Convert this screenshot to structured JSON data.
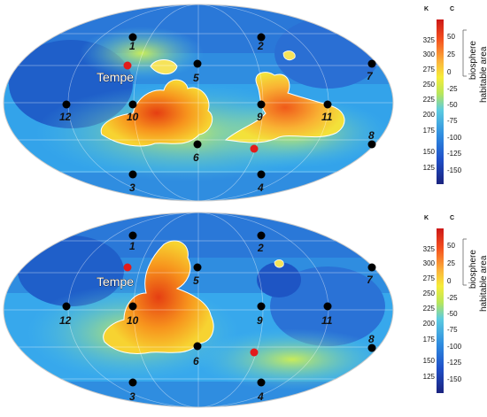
{
  "maps": [
    {
      "id": "top",
      "sites": [
        {
          "label": "1",
          "type": "black"
        },
        {
          "label": "2",
          "type": "black"
        },
        {
          "label": "3",
          "type": "black"
        },
        {
          "label": "4",
          "type": "black"
        },
        {
          "label": "5",
          "type": "black"
        },
        {
          "label": "6",
          "type": "black"
        },
        {
          "label": "7",
          "type": "black"
        },
        {
          "label": "8",
          "type": "black"
        },
        {
          "label": "9",
          "type": "black"
        },
        {
          "label": "10",
          "type": "black"
        },
        {
          "label": "11",
          "type": "black"
        },
        {
          "label": "12",
          "type": "black"
        },
        {
          "label": "Tempe",
          "type": "red"
        },
        {
          "label": "",
          "type": "red"
        }
      ],
      "colorbar": {
        "unit_left": "K",
        "unit_right": "C",
        "ticks_k": [
          "325",
          "300",
          "275",
          "250",
          "225",
          "200",
          "175",
          "150",
          "125"
        ],
        "ticks_c": [
          "50",
          "25",
          "0",
          "-25",
          "-50",
          "-75",
          "-100",
          "-125",
          "-150"
        ],
        "label_biosphere": "biosphere",
        "label_habitable": "habitable area",
        "colors": [
          "#d7191c",
          "#f46d43",
          "#fdae61",
          "#fee08b",
          "#d9ef8b",
          "#66c2a5",
          "#3288bd",
          "#2b59c3",
          "#1a237e"
        ]
      }
    },
    {
      "id": "bottom",
      "sites": [
        {
          "label": "1",
          "type": "black"
        },
        {
          "label": "2",
          "type": "black"
        },
        {
          "label": "3",
          "type": "black"
        },
        {
          "label": "4",
          "type": "black"
        },
        {
          "label": "5",
          "type": "black"
        },
        {
          "label": "6",
          "type": "black"
        },
        {
          "label": "7",
          "type": "black"
        },
        {
          "label": "8",
          "type": "black"
        },
        {
          "label": "9",
          "type": "black"
        },
        {
          "label": "10",
          "type": "black"
        },
        {
          "label": "11",
          "type": "black"
        },
        {
          "label": "12",
          "type": "black"
        },
        {
          "label": "Tempe",
          "type": "red"
        },
        {
          "label": "",
          "type": "red"
        }
      ],
      "colorbar": {
        "unit_left": "K",
        "unit_right": "C",
        "ticks_k": [
          "325",
          "300",
          "275",
          "250",
          "225",
          "200",
          "175",
          "150",
          "125"
        ],
        "ticks_c": [
          "50",
          "25",
          "0",
          "-25",
          "-50",
          "-75",
          "-100",
          "-125",
          "-150"
        ],
        "label_biosphere": "biosphere",
        "label_habitable": "habitable area",
        "colors": [
          "#d7191c",
          "#f46d43",
          "#fdae61",
          "#fee08b",
          "#d9ef8b",
          "#66c2a5",
          "#3288bd",
          "#2b59c3",
          "#1a237e"
        ]
      }
    }
  ]
}
